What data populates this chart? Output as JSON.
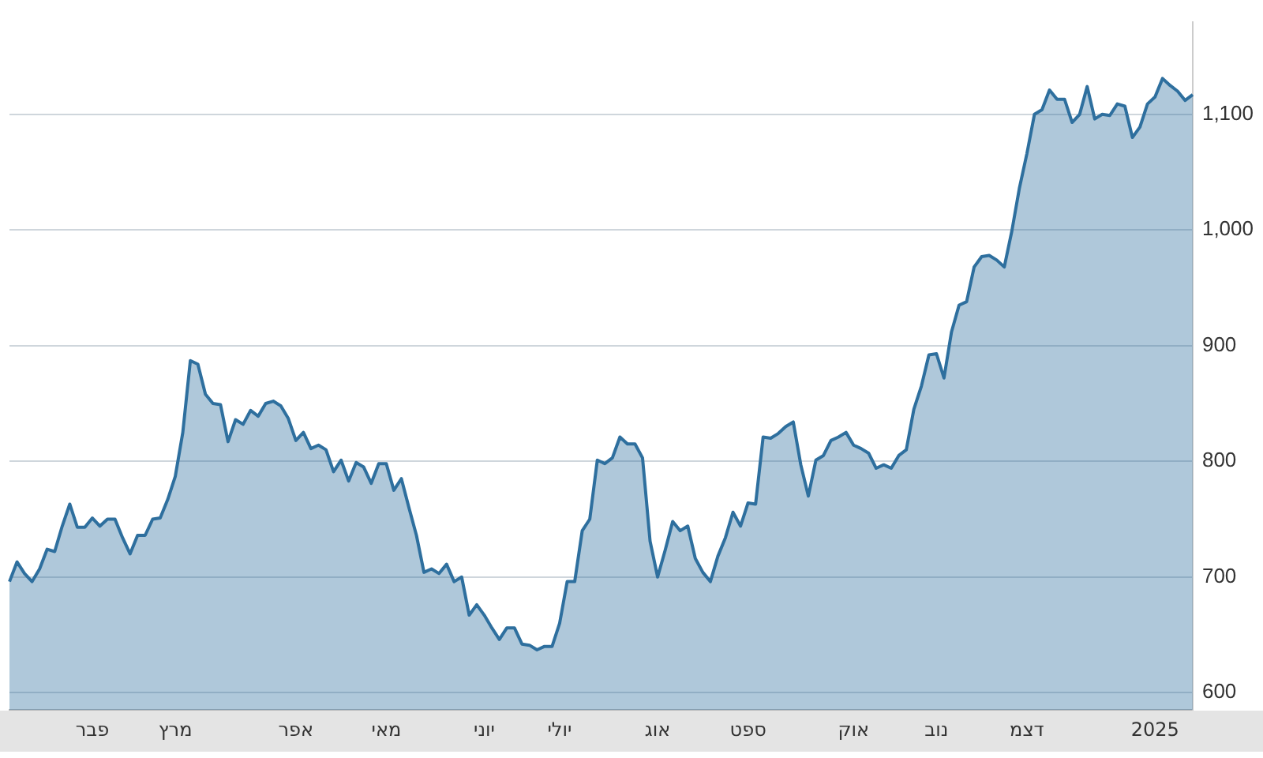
{
  "chart_data": {
    "type": "area",
    "categories": [
      null,
      null,
      null,
      null,
      null,
      null,
      null,
      null,
      null,
      null,
      null,
      "פבר",
      null,
      null,
      null,
      null,
      null,
      null,
      null,
      null,
      null,
      null,
      "מרץ",
      null,
      null,
      null,
      null,
      null,
      null,
      null,
      null,
      null,
      null,
      null,
      null,
      null,
      null,
      null,
      "אפר",
      null,
      null,
      null,
      null,
      null,
      null,
      null,
      null,
      null,
      null,
      null,
      "מאי",
      null,
      null,
      null,
      null,
      null,
      null,
      null,
      null,
      null,
      null,
      null,
      null,
      "יוני",
      null,
      null,
      null,
      null,
      null,
      null,
      null,
      null,
      null,
      "יולי",
      null,
      null,
      null,
      null,
      null,
      null,
      null,
      null,
      null,
      null,
      null,
      null,
      "אוג",
      null,
      null,
      null,
      null,
      null,
      null,
      null,
      null,
      null,
      null,
      null,
      "ספט",
      null,
      null,
      null,
      null,
      null,
      null,
      null,
      null,
      null,
      null,
      null,
      null,
      null,
      "אוק",
      null,
      null,
      null,
      null,
      null,
      null,
      null,
      null,
      null,
      null,
      "נוב",
      null,
      null,
      null,
      null,
      null,
      null,
      null,
      null,
      null,
      null,
      null,
      "דצמ",
      null,
      null,
      null,
      null,
      null,
      null,
      null,
      null,
      null,
      null,
      null,
      null,
      null,
      null,
      null,
      null,
      "2025",
      null,
      null,
      null,
      null,
      null
    ],
    "series": [
      {
        "color": "#2e6f9e",
        "values": [
          696,
          713,
          703,
          696,
          707,
          724,
          722,
          744,
          763,
          743,
          743,
          751,
          744,
          750,
          750,
          734,
          720,
          736,
          736,
          750,
          751,
          767,
          787,
          825,
          887,
          884,
          858,
          850,
          849,
          817,
          836,
          832,
          844,
          839,
          850,
          852,
          848,
          837,
          818,
          825,
          811,
          814,
          810,
          791,
          801,
          783,
          799,
          795,
          781,
          798,
          798,
          775,
          785,
          760,
          736,
          704,
          707,
          703,
          711,
          696,
          700,
          667,
          676,
          667,
          656,
          646,
          656,
          656,
          642,
          641,
          637,
          640,
          640,
          660,
          696,
          696,
          740,
          750,
          801,
          798,
          803,
          821,
          815,
          815,
          803,
          731,
          700,
          723,
          748,
          740,
          744,
          716,
          704,
          696,
          718,
          734,
          756,
          744,
          764,
          763,
          821,
          820,
          824,
          830,
          834,
          797,
          770,
          801,
          805,
          818,
          821,
          825,
          814,
          811,
          807,
          794,
          797,
          794,
          805,
          810,
          845,
          865,
          892,
          893,
          872,
          912,
          935,
          938,
          968,
          977,
          978,
          974,
          968,
          999,
          1036,
          1066,
          1100,
          1104,
          1121,
          1113,
          1113,
          1093,
          1100,
          1124,
          1096,
          1100,
          1099,
          1109,
          1107,
          1080,
          1089,
          1109,
          1115,
          1131,
          1125,
          1120,
          1112,
          1117
        ]
      }
    ],
    "ylim": [
      585,
      1180
    ],
    "yticks": [
      600,
      700,
      800,
      900,
      {
        "value": 1000,
        "label": "1,000"
      },
      {
        "value": 1100,
        "label": "1,100"
      }
    ],
    "grid": "y",
    "legend": false,
    "marker": "none"
  }
}
